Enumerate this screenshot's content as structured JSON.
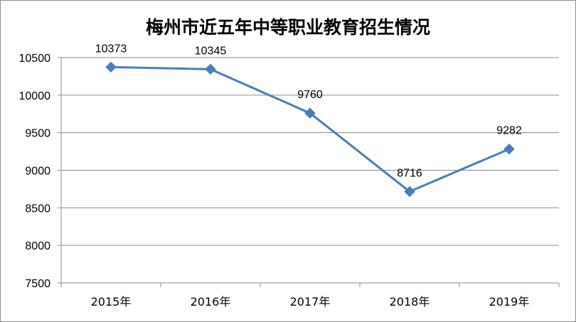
{
  "chart_data": {
    "type": "line",
    "title": "梅州市近五年中等职业教育招生情况",
    "categories": [
      "2015年",
      "2016年",
      "2017年",
      "2018年",
      "2019年"
    ],
    "series": [
      {
        "values": [
          10373,
          10345,
          9760,
          8716,
          9282
        ]
      }
    ],
    "ylim": [
      7500,
      10500
    ],
    "yticks": [
      "7500",
      "8000",
      "8500",
      "9000",
      "9500",
      "10000",
      "10500"
    ],
    "data_labels": [
      "10373",
      "10345",
      "9760",
      "8716",
      "9282"
    ],
    "grid": "horizontal",
    "marker": "diamond",
    "line_color": "#4a7ebb",
    "grid_color": "#8c8c8c"
  }
}
